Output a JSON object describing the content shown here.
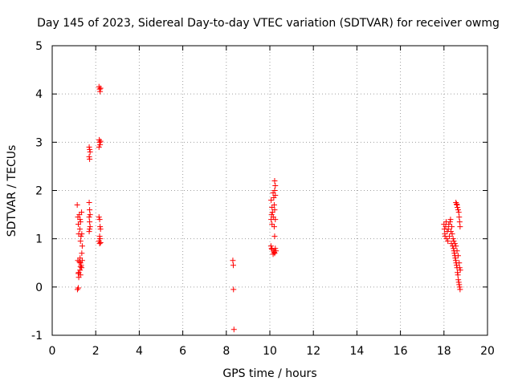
{
  "chart_data": {
    "type": "scatter",
    "title": "Day 145 of 2023, Sidereal Day-to-day VTEC variation (SDTVAR) for receiver owmg",
    "xlabel": "GPS time / hours",
    "ylabel": "SDTVAR / TECUs",
    "xlim": [
      0,
      20
    ],
    "ylim": [
      -1,
      5
    ],
    "xticks": [
      0,
      2,
      4,
      6,
      8,
      10,
      12,
      14,
      16,
      18,
      20
    ],
    "yticks": [
      -1,
      0,
      1,
      2,
      3,
      4,
      5
    ],
    "grid": true,
    "marker": "plus",
    "color": "#ff0000",
    "series": [
      {
        "name": "SDTVAR",
        "points": [
          [
            1.15,
            1.7
          ],
          [
            1.18,
            1.45
          ],
          [
            1.2,
            1.3
          ],
          [
            1.22,
            1.1
          ],
          [
            1.18,
            0.55
          ],
          [
            1.2,
            0.28
          ],
          [
            1.22,
            0.2
          ],
          [
            1.16,
            -0.05
          ],
          [
            1.2,
            -0.02
          ],
          [
            1.25,
            1.5
          ],
          [
            1.28,
            1.4
          ],
          [
            1.3,
            1.35
          ],
          [
            1.27,
            1.2
          ],
          [
            1.32,
            1.05
          ],
          [
            1.3,
            0.95
          ],
          [
            1.28,
            0.6
          ],
          [
            1.3,
            0.5
          ],
          [
            1.33,
            0.45
          ],
          [
            1.28,
            0.35
          ],
          [
            1.3,
            0.25
          ],
          [
            1.35,
            1.55
          ],
          [
            1.36,
            1.1
          ],
          [
            1.38,
            0.85
          ],
          [
            1.36,
            0.7
          ],
          [
            1.38,
            0.55
          ],
          [
            1.35,
            0.4
          ],
          [
            1.3,
            0.42
          ],
          [
            1.25,
            0.52
          ],
          [
            1.22,
            0.3
          ],
          [
            1.7,
            2.9
          ],
          [
            1.72,
            2.85
          ],
          [
            1.74,
            2.8
          ],
          [
            1.7,
            2.7
          ],
          [
            1.72,
            2.65
          ],
          [
            1.7,
            1.75
          ],
          [
            1.72,
            1.6
          ],
          [
            1.74,
            1.5
          ],
          [
            1.7,
            1.45
          ],
          [
            1.72,
            1.35
          ],
          [
            1.74,
            1.25
          ],
          [
            1.7,
            1.15
          ],
          [
            1.72,
            1.2
          ],
          [
            2.15,
            4.15
          ],
          [
            2.18,
            4.1
          ],
          [
            2.2,
            4.05
          ],
          [
            2.22,
            4.12
          ],
          [
            2.16,
            3.05
          ],
          [
            2.18,
            3.0
          ],
          [
            2.2,
            2.95
          ],
          [
            2.22,
            3.02
          ],
          [
            2.15,
            2.9
          ],
          [
            2.15,
            1.45
          ],
          [
            2.18,
            1.4
          ],
          [
            2.2,
            1.25
          ],
          [
            2.22,
            1.2
          ],
          [
            2.18,
            1.05
          ],
          [
            2.2,
            1.0
          ],
          [
            2.15,
            0.95
          ],
          [
            2.22,
            0.92
          ],
          [
            2.18,
            0.9
          ],
          [
            8.3,
            0.55
          ],
          [
            8.32,
            0.45
          ],
          [
            8.33,
            -0.05
          ],
          [
            8.35,
            -0.88
          ],
          [
            10.05,
            0.85
          ],
          [
            10.08,
            0.8
          ],
          [
            10.1,
            0.78
          ],
          [
            10.06,
            1.8
          ],
          [
            10.1,
            1.65
          ],
          [
            10.12,
            1.55
          ],
          [
            10.08,
            1.5
          ],
          [
            10.06,
            1.4
          ],
          [
            10.1,
            1.3
          ],
          [
            10.15,
            1.95
          ],
          [
            10.18,
            1.85
          ],
          [
            10.2,
            1.7
          ],
          [
            10.16,
            1.45
          ],
          [
            10.2,
            1.25
          ],
          [
            10.18,
            0.75
          ],
          [
            10.22,
            0.7
          ],
          [
            10.15,
            0.68
          ],
          [
            10.2,
            0.72
          ],
          [
            10.22,
            2.2
          ],
          [
            10.25,
            2.1
          ],
          [
            10.22,
            2.0
          ],
          [
            10.25,
            1.9
          ],
          [
            10.22,
            1.6
          ],
          [
            10.25,
            1.4
          ],
          [
            10.22,
            1.05
          ],
          [
            10.25,
            0.8
          ],
          [
            10.28,
            0.75
          ],
          [
            18.0,
            1.3
          ],
          [
            18.02,
            1.2
          ],
          [
            18.04,
            1.1
          ],
          [
            18.05,
            1.05
          ],
          [
            18.08,
            1.25
          ],
          [
            18.1,
            1.35
          ],
          [
            18.12,
            1.0
          ],
          [
            18.15,
            1.15
          ],
          [
            18.18,
            0.95
          ],
          [
            18.2,
            1.2
          ],
          [
            18.22,
            1.3
          ],
          [
            18.25,
            1.05
          ],
          [
            18.28,
            1.35
          ],
          [
            18.3,
            1.4
          ],
          [
            18.32,
            1.15
          ],
          [
            18.34,
            0.9
          ],
          [
            18.36,
            1.25
          ],
          [
            18.38,
            1.1
          ],
          [
            18.4,
            0.85
          ],
          [
            18.42,
            1.0
          ],
          [
            18.44,
            0.8
          ],
          [
            18.46,
            0.75
          ],
          [
            18.48,
            0.7
          ],
          [
            18.5,
            0.65
          ],
          [
            18.52,
            0.6
          ],
          [
            18.54,
            0.55
          ],
          [
            18.56,
            0.5
          ],
          [
            18.58,
            0.45
          ],
          [
            18.6,
            0.4
          ],
          [
            18.62,
            0.3
          ],
          [
            18.64,
            0.25
          ],
          [
            18.66,
            0.15
          ],
          [
            18.68,
            0.1
          ],
          [
            18.7,
            0.05
          ],
          [
            18.72,
            0.0
          ],
          [
            18.74,
            -0.05
          ],
          [
            18.55,
            1.75
          ],
          [
            18.58,
            1.72
          ],
          [
            18.6,
            1.7
          ],
          [
            18.62,
            1.65
          ],
          [
            18.65,
            1.6
          ],
          [
            18.68,
            1.55
          ],
          [
            18.7,
            1.45
          ],
          [
            18.72,
            1.35
          ],
          [
            18.74,
            1.25
          ],
          [
            18.45,
            0.95
          ],
          [
            18.5,
            0.9
          ],
          [
            18.55,
            0.85
          ],
          [
            18.6,
            0.75
          ],
          [
            18.65,
            0.65
          ],
          [
            18.7,
            0.5
          ],
          [
            18.72,
            0.4
          ],
          [
            18.75,
            0.35
          ]
        ]
      }
    ]
  }
}
